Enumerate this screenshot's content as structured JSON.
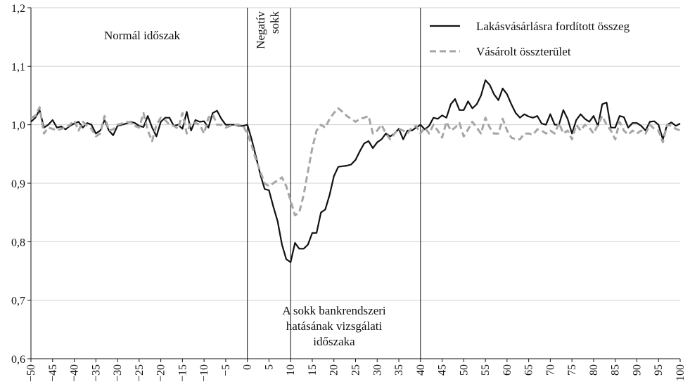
{
  "chart_data": {
    "type": "line",
    "x": [
      -50,
      -49,
      -48,
      -47,
      -46,
      -45,
      -44,
      -43,
      -42,
      -41,
      -40,
      -39,
      -38,
      -37,
      -36,
      -35,
      -34,
      -33,
      -32,
      -31,
      -30,
      -29,
      -28,
      -27,
      -26,
      -25,
      -24,
      -23,
      -22,
      -21,
      -20,
      -19,
      -18,
      -17,
      -16,
      -15,
      -14,
      -13,
      -12,
      -11,
      -10,
      -9,
      -8,
      -7,
      -6,
      -5,
      -4,
      -3,
      -2,
      -1,
      0,
      1,
      2,
      3,
      4,
      5,
      6,
      7,
      8,
      9,
      10,
      11,
      12,
      13,
      14,
      15,
      16,
      17,
      18,
      19,
      20,
      21,
      22,
      23,
      24,
      25,
      26,
      27,
      28,
      29,
      30,
      31,
      32,
      33,
      34,
      35,
      36,
      37,
      38,
      39,
      40,
      41,
      42,
      43,
      44,
      45,
      46,
      47,
      48,
      49,
      50,
      51,
      52,
      53,
      54,
      55,
      56,
      57,
      58,
      59,
      60,
      61,
      62,
      63,
      64,
      65,
      66,
      67,
      68,
      69,
      70,
      71,
      72,
      73,
      74,
      75,
      76,
      77,
      78,
      79,
      80,
      81,
      82,
      83,
      84,
      85,
      86,
      87,
      88,
      89,
      90,
      91,
      92,
      93,
      94,
      95,
      96,
      97,
      98,
      99,
      100
    ],
    "series": [
      {
        "name": "Lakásvásárlásra fordított összeg",
        "color": "#111111",
        "dashed": false,
        "values": [
          1.005,
          1.012,
          1.025,
          0.995,
          1.0,
          1.008,
          0.995,
          0.997,
          0.992,
          0.998,
          1.002,
          1.005,
          0.995,
          1.003,
          1.0,
          0.985,
          0.99,
          1.008,
          0.99,
          0.982,
          0.998,
          1.0,
          1.002,
          1.005,
          1.003,
          0.998,
          0.996,
          1.015,
          0.995,
          0.98,
          1.005,
          1.012,
          1.012,
          0.998,
          1.0,
          0.993,
          1.022,
          0.99,
          1.008,
          1.005,
          1.006,
          0.995,
          1.02,
          1.024,
          1.01,
          1.0,
          1.0,
          1.0,
          0.998,
          0.998,
          1.0,
          0.975,
          0.945,
          0.915,
          0.89,
          0.888,
          0.86,
          0.835,
          0.795,
          0.77,
          0.765,
          0.798,
          0.788,
          0.788,
          0.795,
          0.815,
          0.815,
          0.85,
          0.855,
          0.88,
          0.912,
          0.928,
          0.929,
          0.93,
          0.932,
          0.94,
          0.955,
          0.968,
          0.972,
          0.96,
          0.97,
          0.975,
          0.985,
          0.98,
          0.985,
          0.993,
          0.975,
          0.99,
          0.99,
          0.995,
          1.0,
          0.992,
          0.998,
          1.012,
          1.01,
          1.016,
          1.012,
          1.035,
          1.044,
          1.025,
          1.025,
          1.04,
          1.028,
          1.035,
          1.05,
          1.076,
          1.068,
          1.052,
          1.042,
          1.062,
          1.052,
          1.035,
          1.02,
          1.012,
          1.018,
          1.014,
          1.012,
          1.015,
          1.002,
          1.0,
          1.018,
          1.0,
          1.0,
          1.025,
          1.01,
          0.985,
          1.008,
          1.018,
          1.01,
          1.005,
          1.015,
          0.998,
          1.035,
          1.038,
          0.995,
          0.995,
          1.015,
          1.013,
          0.995,
          1.003,
          1.003,
          0.998,
          0.99,
          1.005,
          1.006,
          1.0,
          0.975,
          1.0,
          1.004,
          0.998,
          1.002
        ]
      },
      {
        "name": "Vásárolt összterület",
        "color": "#a6a6a6",
        "dashed": true,
        "values": [
          1.012,
          1.015,
          1.03,
          0.985,
          0.995,
          0.993,
          0.99,
          0.993,
          0.995,
          1.0,
          1.007,
          0.99,
          1.005,
          0.998,
          0.993,
          0.98,
          0.985,
          1.015,
          0.99,
          0.992,
          1.0,
          1.002,
          1.005,
          1.004,
          0.998,
          0.995,
          1.02,
          0.99,
          0.972,
          1.0,
          1.012,
          1.008,
          1.0,
          0.998,
          0.993,
          1.02,
          0.985,
          1.005,
          1.003,
          1.0,
          0.985,
          1.012,
          1.018,
          1.0,
          1.0,
          0.995,
          0.998,
          1.0,
          1.0,
          0.998,
          0.985,
          0.965,
          0.94,
          0.92,
          0.9,
          0.895,
          0.9,
          0.905,
          0.91,
          0.895,
          0.87,
          0.845,
          0.85,
          0.88,
          0.92,
          0.96,
          0.99,
          1.0,
          0.995,
          1.01,
          1.02,
          1.028,
          1.022,
          1.015,
          1.01,
          1.005,
          1.01,
          1.012,
          1.015,
          0.985,
          0.99,
          1.0,
          0.985,
          0.975,
          0.985,
          0.993,
          0.99,
          0.985,
          0.995,
          0.998,
          0.985,
          0.995,
          0.985,
          1.0,
          0.99,
          0.978,
          1.005,
          0.99,
          0.995,
          1.003,
          0.98,
          0.992,
          1.005,
          0.995,
          0.985,
          1.012,
          0.995,
          0.985,
          0.985,
          1.01,
          0.99,
          0.978,
          0.975,
          0.975,
          0.985,
          0.985,
          0.983,
          0.992,
          0.99,
          0.985,
          0.99,
          0.985,
          1.003,
          0.985,
          0.99,
          0.975,
          1.0,
          0.99,
          1.0,
          0.995,
          0.985,
          1.0,
          1.015,
          1.0,
          0.99,
          0.975,
          1.005,
          0.99,
          0.983,
          0.99,
          0.985,
          0.99,
          0.985,
          1.0,
          0.993,
          0.99,
          0.97,
          1.0,
          0.998,
          0.993,
          0.99
        ]
      }
    ],
    "xlim": [
      -50,
      100
    ],
    "ylim": [
      0.6,
      1.2
    ],
    "yticks": [
      {
        "value": 0.6,
        "label": "0,6"
      },
      {
        "value": 0.7,
        "label": "0,7"
      },
      {
        "value": 0.8,
        "label": "0,8"
      },
      {
        "value": 0.9,
        "label": "0,9"
      },
      {
        "value": 1.0,
        "label": "1,0"
      },
      {
        "value": 1.1,
        "label": "1,1"
      },
      {
        "value": 1.2,
        "label": "1,2"
      }
    ],
    "xticks": [
      {
        "value": -50,
        "label": "−50"
      },
      {
        "value": -45,
        "label": "−45"
      },
      {
        "value": -40,
        "label": "−40"
      },
      {
        "value": -35,
        "label": "−35"
      },
      {
        "value": -30,
        "label": "−30"
      },
      {
        "value": -25,
        "label": "−25"
      },
      {
        "value": -20,
        "label": "−20"
      },
      {
        "value": -15,
        "label": "−15"
      },
      {
        "value": -10,
        "label": "−10"
      },
      {
        "value": -5,
        "label": "−5"
      },
      0,
      5,
      10,
      15,
      20,
      25,
      30,
      35,
      40,
      45,
      50,
      55,
      60,
      65,
      70,
      75,
      80,
      85,
      90,
      95,
      100
    ],
    "vlines": [
      0,
      10,
      40
    ],
    "grid": true,
    "legend": "top-right",
    "annotations": {
      "normal": "Normál időszak",
      "shock": [
        "Negatív",
        "sokk"
      ],
      "study": [
        "A sokk bankrendszeri",
        "hatásának vizsgálati",
        "időszaka"
      ]
    }
  }
}
